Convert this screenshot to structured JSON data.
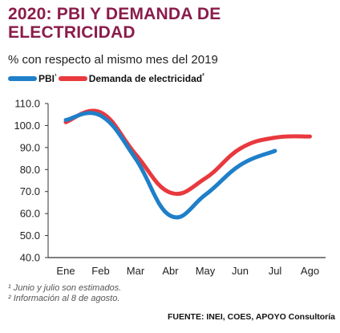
{
  "chart_data": {
    "type": "line",
    "title": "2020: PBI Y DEMANDA DE ELECTRICIDAD",
    "subtitle": "% con respecto al mismo mes del 2019",
    "categories": [
      "Ene",
      "Feb",
      "Mar",
      "Abr",
      "May",
      "Jun",
      "Jul",
      "Ago"
    ],
    "ylim": [
      40,
      110
    ],
    "yticks": [
      "110.0",
      "100.0",
      "90.0",
      "80.0",
      "70.0",
      "60.0",
      "50.0",
      "40.0"
    ],
    "grid": false,
    "legend_position": "top-left",
    "series": [
      {
        "name": "PBI",
        "marker": "¹",
        "color": "#1f7fc9",
        "values": [
          102.5,
          104.5,
          85.0,
          59.0,
          68.5,
          82.0,
          88.5,
          null
        ]
      },
      {
        "name": "Demanda de electricidad",
        "marker": "²",
        "color": "#e8393e",
        "values": [
          101.5,
          106.0,
          87.0,
          69.5,
          76.0,
          89.5,
          94.5,
          95.0
        ]
      }
    ]
  },
  "notes": [
    "¹ Junio y julio son estimados.",
    "² Información al 8 de agosto."
  ],
  "source": "FUENTE: INEI, COES, APOYO Consultoría"
}
